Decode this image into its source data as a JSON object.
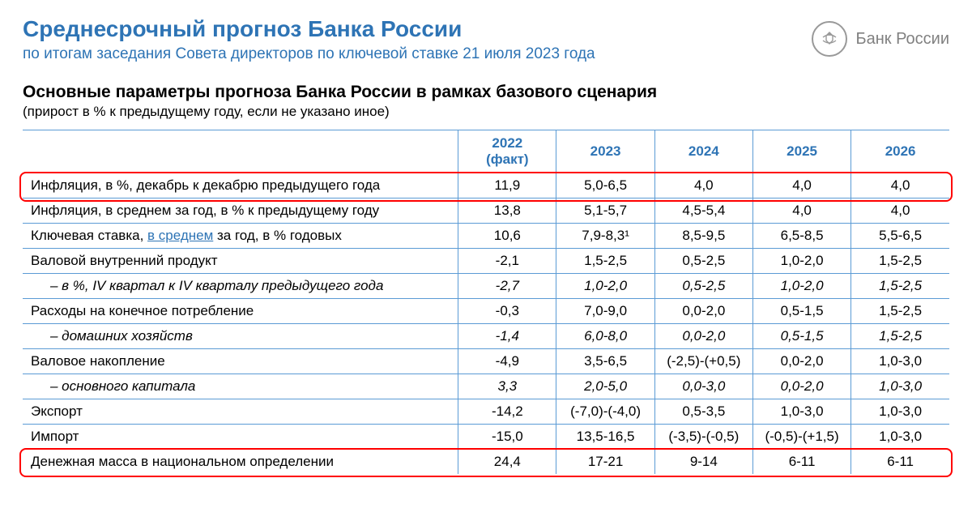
{
  "colors": {
    "title": "#2e74b5",
    "subtitle": "#2e74b5",
    "header_text": "#2e74b5",
    "border": "#5b9bd5",
    "highlight_border": "#ff0000",
    "logo_gray": "#808080",
    "body_text": "#000000",
    "background": "#ffffff"
  },
  "header": {
    "title": "Среднесрочный прогноз Банка России",
    "subtitle": "по итогам заседания Совета директоров по ключевой ставке 21 июля 2023 года",
    "logo_text": "Банк России"
  },
  "section": {
    "title": "Основные параметры прогноза Банка России в рамках базового сценария",
    "note": "(прирост в % к предыдущему году, если не указано иное)"
  },
  "table": {
    "col_widths_pct": [
      47,
      10.6,
      10.6,
      10.6,
      10.6,
      10.6
    ],
    "columns": [
      "",
      "2022\n(факт)",
      "2023",
      "2024",
      "2025",
      "2026"
    ],
    "rows": [
      {
        "label": "Инфляция, в %, декабрь к декабрю предыдущего года",
        "values": [
          "11,9",
          "5,0-6,5",
          "4,0",
          "4,0",
          "4,0"
        ],
        "sub": false,
        "italic": false,
        "highlight": true
      },
      {
        "label": "Инфляция, в среднем за год, в % к предыдущему году",
        "values": [
          "13,8",
          "5,1-5,7",
          "4,5-5,4",
          "4,0",
          "4,0"
        ],
        "sub": false,
        "italic": false
      },
      {
        "label_html": "Ключевая ставка, <span class=\"link\" style=\"color:#2e74b5\">в среднем</span> за год, в % годовых",
        "values": [
          "10,6",
          "7,9-8,3¹",
          "8,5-9,5",
          "6,5-8,5",
          "5,5-6,5"
        ],
        "sub": false,
        "italic": false
      },
      {
        "label": "Валовой внутренний продукт",
        "values": [
          "-2,1",
          "1,5-2,5",
          "0,5-2,5",
          "1,0-2,0",
          "1,5-2,5"
        ],
        "sub": false,
        "italic": false
      },
      {
        "label": "– в %, IV квартал к IV кварталу предыдущего года",
        "values": [
          "-2,7",
          "1,0-2,0",
          "0,5-2,5",
          "1,0-2,0",
          "1,5-2,5"
        ],
        "sub": true,
        "italic": true
      },
      {
        "label": "Расходы на конечное потребление",
        "values": [
          "-0,3",
          "7,0-9,0",
          "0,0-2,0",
          "0,5-1,5",
          "1,5-2,5"
        ],
        "sub": false,
        "italic": false
      },
      {
        "label": "– домашних хозяйств",
        "values": [
          "-1,4",
          "6,0-8,0",
          "0,0-2,0",
          "0,5-1,5",
          "1,5-2,5"
        ],
        "sub": true,
        "italic": true
      },
      {
        "label": "Валовое накопление",
        "values": [
          "-4,9",
          "3,5-6,5",
          "(-2,5)-(+0,5)",
          "0,0-2,0",
          "1,0-3,0"
        ],
        "sub": false,
        "italic": false
      },
      {
        "label": "– основного капитала",
        "values": [
          "3,3",
          "2,0-5,0",
          "0,0-3,0",
          "0,0-2,0",
          "1,0-3,0"
        ],
        "sub": true,
        "italic": true
      },
      {
        "label": "Экспорт",
        "values": [
          "-14,2",
          "(-7,0)-(-4,0)",
          "0,5-3,5",
          "1,0-3,0",
          "1,0-3,0"
        ],
        "sub": false,
        "italic": false
      },
      {
        "label": "Импорт",
        "values": [
          "-15,0",
          "13,5-16,5",
          "(-3,5)-(-0,5)",
          "(-0,5)-(+1,5)",
          "1,0-3,0"
        ],
        "sub": false,
        "italic": false
      },
      {
        "label": "Денежная масса в национальном определении",
        "values": [
          "24,4",
          "17-21",
          "9-14",
          "6-11",
          "6-11"
        ],
        "sub": false,
        "italic": false,
        "highlight": true
      }
    ]
  },
  "typography": {
    "title_fontsize": 28,
    "subtitle_fontsize": 19,
    "section_title_fontsize": 21,
    "body_fontsize": 17
  }
}
